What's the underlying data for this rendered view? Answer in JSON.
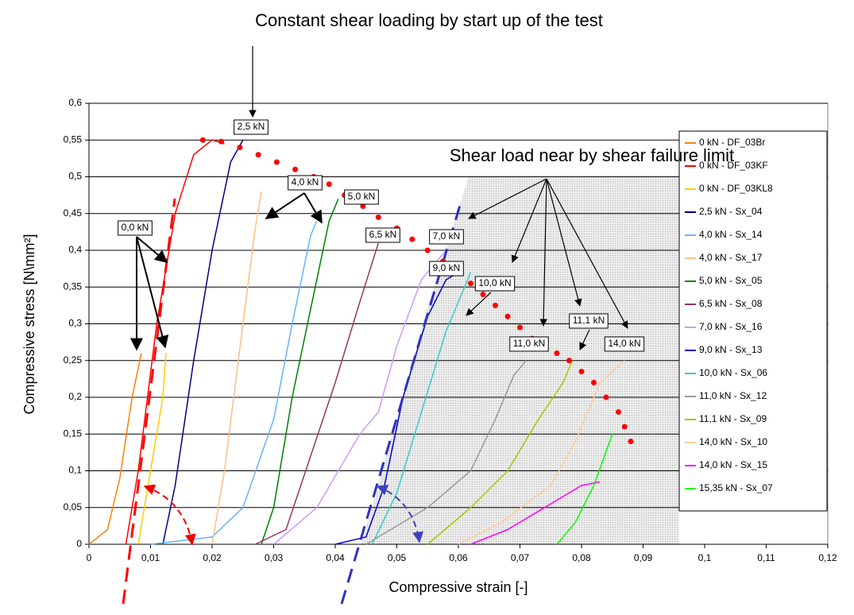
{
  "chart_data": {
    "type": "line",
    "title": "Constant shear loading by start up of  the test",
    "subtitle": "Shear load near by shear failure limit",
    "x_label": "Compressive strain [-]",
    "y_label": "Compressive stress [N\\mm²]",
    "xlim": [
      0,
      0.12
    ],
    "ylim": [
      0,
      0.6
    ],
    "xticks": [
      0,
      {
        "value": 0.01,
        "label": "0,01"
      },
      {
        "value": 0.02,
        "label": "0,02"
      },
      {
        "value": 0.03,
        "label": "0,03"
      },
      {
        "value": 0.04,
        "label": "0,04"
      },
      {
        "value": 0.05,
        "label": "0,05"
      },
      {
        "value": 0.06,
        "label": "0,06"
      },
      {
        "value": 0.07,
        "label": "0,07"
      },
      {
        "value": 0.08,
        "label": "0,08"
      },
      {
        "value": 0.09,
        "label": "0,09"
      },
      {
        "value": 0.1,
        "label": "0,1"
      },
      {
        "value": 0.11,
        "label": "0,11"
      },
      {
        "value": 0.12,
        "label": "0,12"
      }
    ],
    "yticks": [
      0,
      {
        "value": 0.05,
        "label": "0,05"
      },
      {
        "value": 0.1,
        "label": "0,1"
      },
      {
        "value": 0.15,
        "label": "0,15"
      },
      {
        "value": 0.2,
        "label": "0,2"
      },
      {
        "value": 0.25,
        "label": "0,25"
      },
      {
        "value": 0.3,
        "label": "0,3"
      },
      {
        "value": 0.35,
        "label": "0,35"
      },
      {
        "value": 0.4,
        "label": "0,4"
      },
      {
        "value": 0.45,
        "label": "0,45"
      },
      {
        "value": 0.5,
        "label": "0,5"
      },
      {
        "value": 0.55,
        "label": "0,55"
      },
      {
        "value": 0.6,
        "label": "0,6"
      }
    ],
    "grid": true,
    "legend": "right",
    "series": [
      {
        "name": "0 kN - DF_03Br",
        "color": "#ff8000",
        "x": [
          0,
          0.003,
          0.005,
          0.007,
          0.0085
        ],
        "values": [
          0,
          0.02,
          0.09,
          0.2,
          0.26
        ]
      },
      {
        "name": "0 kN - DF_03KF",
        "color": "#ff0000",
        "x": [
          0.006,
          0.008,
          0.011,
          0.014,
          0.017,
          0.02,
          0.022
        ],
        "values": [
          0,
          0.1,
          0.3,
          0.45,
          0.53,
          0.55,
          0.545
        ]
      },
      {
        "name": "0 kN - DF_03KL8",
        "color": "#ffcc00",
        "x": [
          0.008,
          0.01,
          0.012,
          0.0125
        ],
        "values": [
          0,
          0.1,
          0.2,
          0.26
        ]
      },
      {
        "name": "2,5 kN - Sx_04",
        "color": "#000080",
        "x": [
          0.012,
          0.014,
          0.017,
          0.02,
          0.023,
          0.025
        ],
        "values": [
          0,
          0.08,
          0.25,
          0.4,
          0.52,
          0.55
        ]
      },
      {
        "name": "4,0 kN - Sx_14",
        "color": "#66b3ff",
        "x": [
          0.01,
          0.02,
          0.025,
          0.03,
          0.033,
          0.036,
          0.037
        ],
        "values": [
          0,
          0.01,
          0.05,
          0.17,
          0.3,
          0.42,
          0.44
        ]
      },
      {
        "name": "4,0 kN - Sx_17",
        "color": "#ffbf80",
        "x": [
          0.02,
          0.022,
          0.025,
          0.027,
          0.028
        ],
        "values": [
          0,
          0.1,
          0.3,
          0.43,
          0.48
        ]
      },
      {
        "name": "5,0 kN - Sx_05",
        "color": "#008000",
        "x": [
          0.028,
          0.03,
          0.033,
          0.036,
          0.039,
          0.0405
        ],
        "values": [
          0,
          0.05,
          0.2,
          0.32,
          0.44,
          0.47
        ]
      },
      {
        "name": "6,5 kN - Sx_08",
        "color": "#993366",
        "x": [
          0.027,
          0.032,
          0.036,
          0.04,
          0.044,
          0.047
        ],
        "values": [
          0,
          0.02,
          0.12,
          0.22,
          0.33,
          0.41
        ]
      },
      {
        "name": "7,0 kN - Sx_16",
        "color": "#cc99ff",
        "x": [
          0.03,
          0.037,
          0.044,
          0.047,
          0.05,
          0.054,
          0.058
        ],
        "values": [
          0,
          0.05,
          0.15,
          0.18,
          0.27,
          0.36,
          0.4
        ]
      },
      {
        "name": "9,0 kN - Sx_13",
        "color": "#0000cc",
        "x": [
          0.04,
          0.045,
          0.048,
          0.051,
          0.055,
          0.058,
          0.06
        ],
        "values": [
          0,
          0.01,
          0.08,
          0.2,
          0.31,
          0.36,
          0.37
        ]
      },
      {
        "name": "10,0 kN - Sx_06",
        "color": "#33cccc",
        "x": [
          0.046,
          0.05,
          0.054,
          0.058,
          0.062
        ],
        "values": [
          0,
          0.07,
          0.18,
          0.29,
          0.37
        ]
      },
      {
        "name": "11,0 kN - Sx_12",
        "color": "#999999",
        "x": [
          0.045,
          0.055,
          0.062,
          0.066,
          0.069,
          0.071
        ],
        "values": [
          0,
          0.05,
          0.1,
          0.17,
          0.23,
          0.25
        ]
      },
      {
        "name": "11,1 kN - Sx_09",
        "color": "#99cc00",
        "x": [
          0.055,
          0.062,
          0.068,
          0.073,
          0.077,
          0.0785
        ],
        "values": [
          0,
          0.05,
          0.1,
          0.17,
          0.22,
          0.25
        ]
      },
      {
        "name": "14,0 kN - Sx_10",
        "color": "#ffcc99",
        "x": [
          0.06,
          0.067,
          0.075,
          0.079,
          0.083,
          0.087
        ],
        "values": [
          0,
          0.03,
          0.08,
          0.14,
          0.22,
          0.25
        ]
      },
      {
        "name": "14,0 kN - Sx_15",
        "color": "#ff00ff",
        "x": [
          0.062,
          0.068,
          0.074,
          0.08,
          0.083
        ],
        "values": [
          0,
          0.02,
          0.05,
          0.08,
          0.085
        ]
      },
      {
        "name": "15,35 kN - Sx_07",
        "color": "#00ff00",
        "x": [
          0.076,
          0.079,
          0.082,
          0.085
        ],
        "values": [
          0,
          0.03,
          0.08,
          0.15
        ]
      }
    ],
    "failure_limit": {
      "color": "#ff0000",
      "x": [
        0.0185,
        0.0215,
        0.0245,
        0.0275,
        0.0305,
        0.0335,
        0.0365,
        0.039,
        0.0415,
        0.0445,
        0.047,
        0.05,
        0.0525,
        0.055,
        0.0575,
        0.06,
        0.062,
        0.064,
        0.066,
        0.068,
        0.07,
        0.072,
        0.074,
        0.076,
        0.078,
        0.08,
        0.082,
        0.084,
        0.086,
        0.087,
        0.088
      ],
      "values": [
        0.55,
        0.548,
        0.54,
        0.53,
        0.52,
        0.51,
        0.5,
        0.49,
        0.475,
        0.46,
        0.445,
        0.43,
        0.415,
        0.4,
        0.385,
        0.37,
        0.355,
        0.34,
        0.325,
        0.31,
        0.295,
        0.28,
        0.27,
        0.26,
        0.25,
        0.235,
        0.22,
        0.2,
        0.18,
        0.16,
        0.14
      ]
    },
    "annotations": [
      "2,5 kN",
      "4,0 kN",
      "5,0 kN",
      "6,5 kN",
      "7,0 kN",
      "9,0 kN",
      "10,0 kN",
      "11,1 kN",
      "11,0 kN",
      "14,0 kN",
      "0,0 kN"
    ]
  }
}
